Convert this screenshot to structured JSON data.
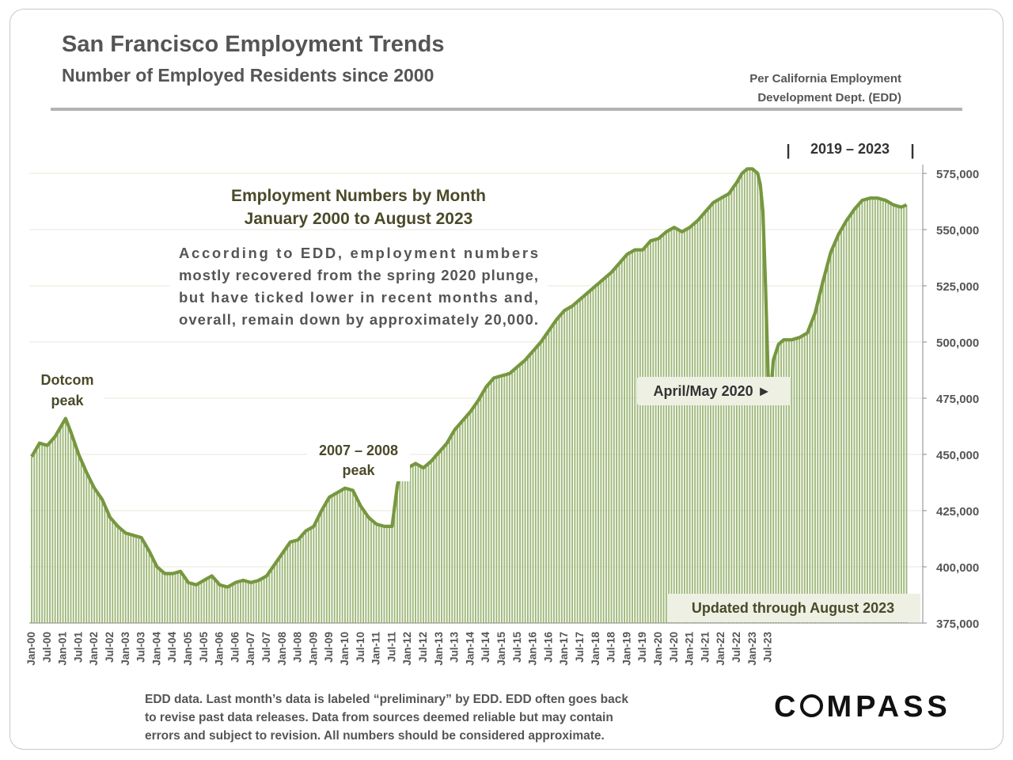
{
  "header": {
    "title": "San Francisco Employment Trends",
    "subtitle": "Number of Employed Residents since 2000",
    "source_line1": "Per California  Employment",
    "source_line2": "Development Dept. (EDD)"
  },
  "footer": {
    "note_line1": "EDD data. Last month’s data is labeled “preliminary” by EDD. EDD often goes back",
    "note_line2": "to revise past data releases. Data from sources deemed reliable but may contain",
    "note_line3": "errors and subject to revision. All numbers should be considered approximate.",
    "logo_prefix": "C",
    "logo_suffix": "MPASS"
  },
  "chart_data": {
    "type": "bar",
    "overlay": "line",
    "title": "Employment Numbers by Month",
    "subtitle": "January 2000 to August 2023",
    "commentary": [
      "According  to  EDD,  employment  numbers",
      "mostly recovered from the spring 2020 plunge,",
      "but have ticked lower in recent months and,",
      "overall, remain down by approximately 20,000."
    ],
    "annotations": {
      "dotcom_line1": "Dotcom",
      "dotcom_line2": "peak",
      "peak0708_line1": "2007 – 2008",
      "peak0708_line2": "peak",
      "covid": "April/May 2020 ►",
      "range_label": "2019 – 2023",
      "range_bar": "|",
      "updated": "Updated through August 2023"
    },
    "colors": {
      "bar": "#9fb87a",
      "line": "#76973f",
      "grid": "#e4e8d8",
      "label_box": "#edf0e3"
    },
    "ylim": [
      375000,
      575000
    ],
    "yticks": [
      375000,
      400000,
      425000,
      450000,
      475000,
      500000,
      525000,
      550000,
      575000
    ],
    "ytick_labels": [
      "375,000",
      "400,000",
      "425,000",
      "450,000",
      "475,000",
      "500,000",
      "525,000",
      "550,000",
      "575,000"
    ],
    "xtick_labels": [
      "Jan-00",
      "Jul-00",
      "Jan-01",
      "Jul-01",
      "Jan-02",
      "Jul-02",
      "Jan-03",
      "Jul-03",
      "Jan-04",
      "Jul-04",
      "Jan-05",
      "Jul-05",
      "Jan-06",
      "Jul-06",
      "Jan-07",
      "Jul-07",
      "Jan-08",
      "Jul-08",
      "Jan-09",
      "Jul-09",
      "Jan-10",
      "Jul-10",
      "Jan-11",
      "Jul-11",
      "Jan-12",
      "Jul-12",
      "Jan-13",
      "Jul-13",
      "Jan-14",
      "Jul-14",
      "Jan-15",
      "Jul-15",
      "Jan-16",
      "Jul-16",
      "Jan-17",
      "Jul-17",
      "Jan-18",
      "Jul-18",
      "Jan-19",
      "Jul-19",
      "Jan-20",
      "Jul-20",
      "Jan-21",
      "Jul-21",
      "Jan-22",
      "Jul-22",
      "Jan-23",
      "Jul-23"
    ],
    "series_anchors": [
      [
        0,
        449000
      ],
      [
        3,
        455000
      ],
      [
        6,
        454000
      ],
      [
        9,
        458000
      ],
      [
        12,
        464000
      ],
      [
        13,
        466000
      ],
      [
        15,
        460000
      ],
      [
        18,
        450000
      ],
      [
        21,
        442000
      ],
      [
        24,
        435000
      ],
      [
        27,
        430000
      ],
      [
        30,
        422000
      ],
      [
        33,
        418000
      ],
      [
        36,
        415000
      ],
      [
        39,
        414000
      ],
      [
        42,
        413000
      ],
      [
        45,
        407000
      ],
      [
        48,
        400000
      ],
      [
        51,
        397000
      ],
      [
        54,
        397000
      ],
      [
        57,
        398000
      ],
      [
        60,
        393000
      ],
      [
        63,
        392000
      ],
      [
        66,
        394000
      ],
      [
        69,
        396000
      ],
      [
        72,
        392000
      ],
      [
        75,
        391000
      ],
      [
        78,
        393000
      ],
      [
        81,
        394000
      ],
      [
        84,
        393000
      ],
      [
        87,
        394000
      ],
      [
        90,
        396000
      ],
      [
        93,
        401000
      ],
      [
        96,
        406000
      ],
      [
        99,
        411000
      ],
      [
        102,
        412000
      ],
      [
        105,
        416000
      ],
      [
        108,
        418000
      ],
      [
        111,
        425000
      ],
      [
        114,
        431000
      ],
      [
        117,
        433000
      ],
      [
        120,
        435000
      ],
      [
        123,
        434000
      ],
      [
        126,
        427000
      ],
      [
        129,
        422000
      ],
      [
        132,
        419000
      ],
      [
        135,
        418000
      ],
      [
        138,
        418000
      ],
      [
        140,
        436000
      ],
      [
        141,
        441000
      ],
      [
        144,
        444000
      ],
      [
        147,
        446000
      ],
      [
        150,
        444000
      ],
      [
        153,
        447000
      ],
      [
        156,
        451000
      ],
      [
        159,
        455000
      ],
      [
        162,
        461000
      ],
      [
        165,
        465000
      ],
      [
        168,
        469000
      ],
      [
        171,
        474000
      ],
      [
        174,
        480000
      ],
      [
        177,
        484000
      ],
      [
        180,
        485000
      ],
      [
        183,
        486000
      ],
      [
        186,
        489000
      ],
      [
        189,
        492000
      ],
      [
        192,
        496000
      ],
      [
        195,
        500000
      ],
      [
        198,
        505000
      ],
      [
        201,
        510000
      ],
      [
        204,
        514000
      ],
      [
        207,
        516000
      ],
      [
        210,
        519000
      ],
      [
        213,
        522000
      ],
      [
        216,
        525000
      ],
      [
        219,
        528000
      ],
      [
        222,
        531000
      ],
      [
        225,
        535000
      ],
      [
        228,
        539000
      ],
      [
        231,
        541000
      ],
      [
        234,
        541000
      ],
      [
        237,
        545000
      ],
      [
        240,
        546000
      ],
      [
        243,
        549000
      ],
      [
        246,
        551000
      ],
      [
        249,
        549000
      ],
      [
        252,
        551000
      ],
      [
        255,
        554000
      ],
      [
        258,
        558000
      ],
      [
        261,
        562000
      ],
      [
        264,
        564000
      ],
      [
        267,
        566000
      ],
      [
        270,
        571000
      ],
      [
        272,
        575000
      ],
      [
        274,
        577000
      ],
      [
        276,
        577000
      ],
      [
        278,
        575000
      ],
      [
        279,
        570000
      ],
      [
        280,
        558000
      ],
      [
        281,
        525000
      ],
      [
        282,
        485000
      ],
      [
        283,
        478000
      ],
      [
        284,
        492000
      ],
      [
        286,
        499000
      ],
      [
        288,
        501000
      ],
      [
        291,
        501000
      ],
      [
        294,
        502000
      ],
      [
        297,
        504000
      ],
      [
        300,
        513000
      ],
      [
        303,
        527000
      ],
      [
        306,
        540000
      ],
      [
        309,
        548000
      ],
      [
        312,
        554000
      ],
      [
        315,
        559000
      ],
      [
        318,
        563000
      ],
      [
        321,
        564000
      ],
      [
        324,
        564000
      ],
      [
        327,
        563000
      ],
      [
        330,
        561000
      ],
      [
        333,
        560000
      ],
      [
        335,
        561000
      ]
    ]
  }
}
